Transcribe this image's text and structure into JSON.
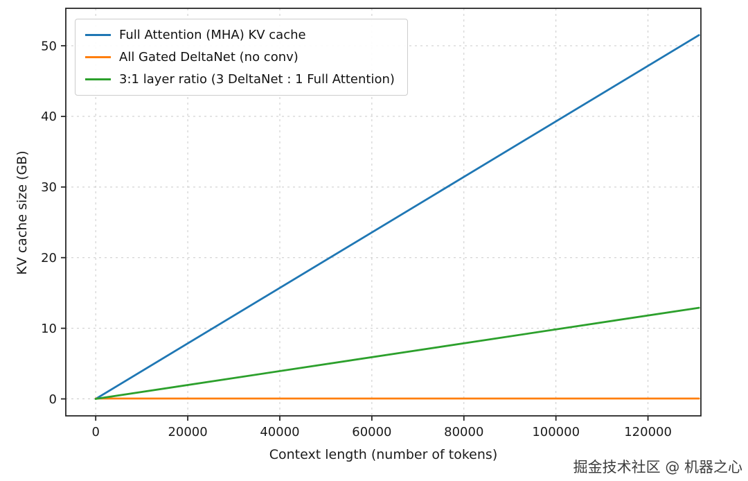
{
  "chart_data": {
    "type": "line",
    "title": "",
    "xlabel": "Context length (number of tokens)",
    "ylabel": "KV cache size (GB)",
    "xlim": [
      -6500,
      131500
    ],
    "ylim": [
      -2.4,
      55.3
    ],
    "xticks": [
      0,
      20000,
      40000,
      60000,
      80000,
      100000,
      120000
    ],
    "xtick_labels": [
      "0",
      "20000",
      "40000",
      "60000",
      "80000",
      "100000",
      "120000"
    ],
    "yticks": [
      0,
      10,
      20,
      30,
      40,
      50
    ],
    "ytick_labels": [
      "0",
      "10",
      "20",
      "30",
      "40",
      "50"
    ],
    "grid": "dashed",
    "grid_color": "#c9c9c9",
    "legend_position": "upper left",
    "series": [
      {
        "name": "Full Attention (MHA) KV cache",
        "color": "#1f77b4",
        "x": [
          0,
          131072
        ],
        "y": [
          0,
          51.5
        ]
      },
      {
        "name": "All Gated DeltaNet (no conv)",
        "color": "#ff7f0e",
        "x": [
          0,
          131072
        ],
        "y": [
          0.05,
          0.05
        ]
      },
      {
        "name": "3:1 layer ratio (3 DeltaNet : 1 Full Attention)",
        "color": "#2ca02c",
        "x": [
          0,
          131072
        ],
        "y": [
          0,
          12.9
        ]
      }
    ]
  },
  "watermark": "掘金技术社区 @ 机器之心"
}
